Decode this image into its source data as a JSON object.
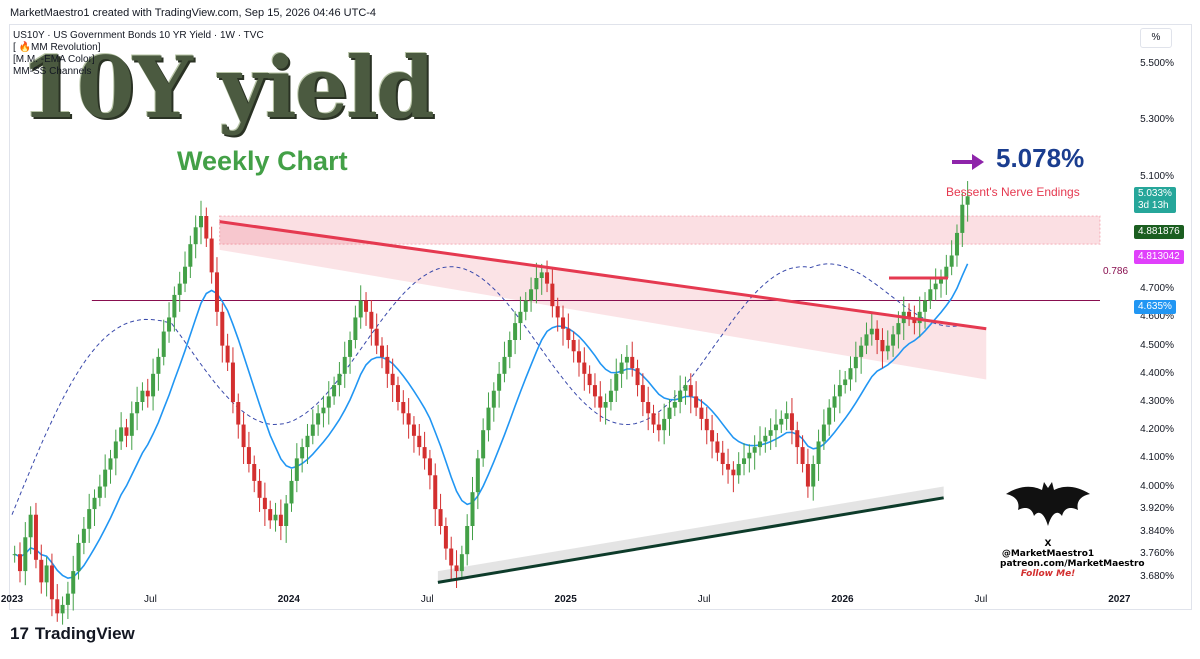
{
  "header": {
    "attribution": "MarketMaestro1 created with TradingView.com, Sep 15, 2026 04:46 UTC-4"
  },
  "legend": {
    "symbol": "US10Y · US Government Bonds 10 YR Yield · 1W · TVC",
    "indicators": [
      "[ 🔥MM Revolution]",
      "[M.M. -EMA Color]",
      "MM-SS Channels"
    ]
  },
  "annotations": {
    "big_title": "10Y yield",
    "timeframe": "Weekly Chart",
    "target": "5.078%",
    "zone": "Bessent's Nerve Endings",
    "fib_level": "0.786"
  },
  "price_scale": {
    "unit": "%",
    "ticks": [
      "5.500%",
      "5.300%",
      "5.100%",
      "4.900%",
      "4.700%",
      "4.600%",
      "4.500%",
      "4.400%",
      "4.300%",
      "4.200%",
      "4.100%",
      "4.000%",
      "3.920%",
      "3.840%",
      "3.760%",
      "3.680%"
    ]
  },
  "badges": [
    {
      "label": "5.033%",
      "sub": "3d 13h",
      "color": "#26a69a"
    },
    {
      "label": "4.881876",
      "color": "#1b5e20"
    },
    {
      "label": "4.813042",
      "color": "#e040fb"
    },
    {
      "label": "4.635%",
      "color": "#2196f3"
    }
  ],
  "time_scale": {
    "ticks": [
      {
        "label": "2023",
        "year": true,
        "t": 0
      },
      {
        "label": "Jul",
        "year": false,
        "t": 26
      },
      {
        "label": "2024",
        "year": true,
        "t": 52
      },
      {
        "label": "Jul",
        "year": false,
        "t": 78
      },
      {
        "label": "2025",
        "year": true,
        "t": 104
      },
      {
        "label": "Jul",
        "year": false,
        "t": 130
      },
      {
        "label": "2026",
        "year": true,
        "t": 156
      },
      {
        "label": "Jul",
        "year": false,
        "t": 182
      },
      {
        "label": "2027",
        "year": true,
        "t": 208
      }
    ]
  },
  "watermark": {
    "handle": "X @MarketMaestro1",
    "site": "patreon.com/MarketMaestro",
    "cta": "Follow Me!"
  },
  "footer": {
    "brand": "TradingView",
    "logo": "17"
  },
  "chart_data": {
    "type": "candlestick",
    "title": "US10Y · US Government Bonds 10 YR Yield · 1W · TVC",
    "ylabel": "%",
    "ylim": [
      3.64,
      5.62
    ],
    "closes": [
      3.76,
      3.7,
      3.82,
      3.9,
      3.74,
      3.66,
      3.72,
      3.6,
      3.55,
      3.58,
      3.62,
      3.7,
      3.8,
      3.85,
      3.92,
      3.96,
      4.0,
      4.06,
      4.1,
      4.16,
      4.21,
      4.18,
      4.26,
      4.3,
      4.34,
      4.32,
      4.4,
      4.46,
      4.55,
      4.6,
      4.68,
      4.72,
      4.78,
      4.86,
      4.92,
      4.96,
      4.88,
      4.76,
      4.62,
      4.5,
      4.44,
      4.3,
      4.22,
      4.14,
      4.08,
      4.02,
      3.96,
      3.92,
      3.88,
      3.9,
      3.86,
      3.94,
      4.02,
      4.1,
      4.14,
      4.18,
      4.22,
      4.26,
      4.28,
      4.32,
      4.36,
      4.4,
      4.46,
      4.52,
      4.6,
      4.66,
      4.62,
      4.56,
      4.5,
      4.46,
      4.4,
      4.36,
      4.3,
      4.26,
      4.22,
      4.18,
      4.14,
      4.1,
      4.04,
      3.92,
      3.86,
      3.78,
      3.72,
      3.7,
      3.76,
      3.86,
      3.98,
      4.1,
      4.2,
      4.28,
      4.34,
      4.4,
      4.46,
      4.52,
      4.58,
      4.62,
      4.66,
      4.7,
      4.74,
      4.76,
      4.72,
      4.64,
      4.6,
      4.56,
      4.52,
      4.48,
      4.44,
      4.4,
      4.36,
      4.32,
      4.28,
      4.3,
      4.34,
      4.4,
      4.44,
      4.46,
      4.42,
      4.36,
      4.3,
      4.26,
      4.22,
      4.2,
      4.24,
      4.28,
      4.3,
      4.34,
      4.36,
      4.32,
      4.28,
      4.24,
      4.2,
      4.16,
      4.12,
      4.08,
      4.06,
      4.04,
      4.08,
      4.1,
      4.12,
      4.14,
      4.16,
      4.18,
      4.2,
      4.22,
      4.24,
      4.26,
      4.2,
      4.14,
      4.08,
      4.0,
      4.08,
      4.16,
      4.22,
      4.28,
      4.32,
      4.36,
      4.38,
      4.42,
      4.46,
      4.5,
      4.54,
      4.56,
      4.52,
      4.48,
      4.5,
      4.54,
      4.58,
      4.62,
      4.6,
      4.58,
      4.62,
      4.66,
      4.7,
      4.72,
      4.74,
      4.78,
      4.82,
      4.9,
      5.0,
      5.03
    ],
    "start_week": 0,
    "overlays": {
      "resistance_trendline": {
        "from": {
          "t": 39,
          "y": 4.94
        },
        "to": {
          "t": 183,
          "y": 4.56
        }
      },
      "support_trendline": {
        "from": {
          "t": 80,
          "y": 3.66
        },
        "to": {
          "t": 175,
          "y": 3.96
        }
      },
      "fib_0786": 4.66,
      "target_zone": [
        4.86,
        4.96
      ],
      "target": 5.078
    }
  }
}
